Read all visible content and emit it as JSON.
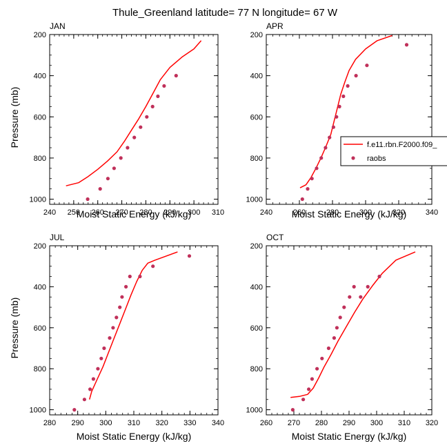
{
  "title": "Thule_Greenland  latitude= 77 N longitude= 67 W",
  "colors": {
    "model": "#ff0000",
    "obs": "#c0305a",
    "axis": "#000000"
  },
  "legend": {
    "model_label": "f.e11.rbn.F2000.f09_",
    "obs_label": "raobs",
    "placement": "inside APR panel, right side, clipped"
  },
  "chart_data": [
    {
      "type": "line",
      "panel": "JAN",
      "xlabel": "Moist Static Energy (kJ/kg)",
      "ylabel": "Pressure (mb)",
      "xlim": [
        240,
        310
      ],
      "ylim": [
        1025,
        200
      ],
      "xticks": [
        240,
        250,
        260,
        270,
        280,
        290,
        300,
        310
      ],
      "yticks": [
        200,
        400,
        600,
        800,
        1000
      ],
      "series": [
        {
          "name": "f.e11.rbn.F2000.f09_",
          "kind": "line",
          "x": [
            246.8,
            252,
            256,
            260,
            264,
            268,
            271,
            274,
            277,
            280,
            283,
            286,
            290,
            295,
            300,
            303
          ],
          "y": [
            935,
            920,
            890,
            855,
            815,
            770,
            720,
            665,
            610,
            550,
            485,
            420,
            360,
            310,
            270,
            230
          ]
        },
        {
          "name": "raobs",
          "kind": "scatter",
          "x": [
            255.8,
            261,
            264.2,
            266.8,
            269.6,
            272.4,
            275.2,
            277.8,
            280.4,
            282.8,
            285,
            287.6,
            292.6
          ],
          "y": [
            1000,
            950,
            900,
            850,
            800,
            750,
            700,
            650,
            600,
            550,
            500,
            450,
            400
          ]
        }
      ]
    },
    {
      "type": "line",
      "panel": "APR",
      "xlabel": "Moist Static Energy (kJ/kg)",
      "ylabel": "",
      "xlim": [
        240,
        340
      ],
      "ylim": [
        1025,
        200
      ],
      "xticks": [
        240,
        260,
        280,
        300,
        320,
        340
      ],
      "yticks": [
        200,
        400,
        600,
        800,
        1000
      ],
      "series": [
        {
          "name": "f.e11.rbn.F2000.f09_",
          "kind": "line",
          "x": [
            260.4,
            264,
            267,
            270,
            273,
            276,
            279,
            281,
            283,
            285,
            287.5,
            290,
            294,
            300,
            307,
            316
          ],
          "y": [
            945,
            930,
            895,
            850,
            800,
            745,
            685,
            620,
            555,
            490,
            430,
            375,
            320,
            270,
            230,
            205
          ]
        },
        {
          "name": "raobs",
          "kind": "scatter",
          "x": [
            261.8,
            265,
            267.6,
            270.4,
            273.2,
            275.8,
            278.2,
            280.6,
            282.4,
            284.2,
            286.6,
            289.2,
            294.2,
            300.8,
            324.8
          ],
          "y": [
            1000,
            950,
            900,
            850,
            800,
            750,
            700,
            650,
            600,
            550,
            500,
            450,
            400,
            350,
            250
          ]
        }
      ]
    },
    {
      "type": "line",
      "panel": "JUL",
      "xlabel": "Moist Static Energy (kJ/kg)",
      "ylabel": "Pressure (mb)",
      "xlim": [
        280,
        340
      ],
      "ylim": [
        1025,
        200
      ],
      "xticks": [
        280,
        290,
        300,
        310,
        320,
        330,
        340
      ],
      "yticks": [
        200,
        400,
        600,
        800,
        1000
      ],
      "series": [
        {
          "name": "f.e11.rbn.F2000.f09_",
          "kind": "line",
          "x": [
            294.2,
            295,
            297,
            299,
            301,
            303,
            305,
            307,
            309,
            311,
            313,
            315,
            317.6,
            325.6
          ],
          "y": [
            950,
            910,
            850,
            790,
            720,
            650,
            580,
            510,
            440,
            375,
            320,
            285,
            270,
            230
          ]
        },
        {
          "name": "raobs",
          "kind": "scatter",
          "x": [
            288.8,
            292.4,
            294.4,
            295.6,
            297.2,
            298.4,
            299.4,
            301.4,
            302.6,
            303.8,
            305,
            305.8,
            307.2,
            308.6,
            312.2,
            316.8,
            329.8
          ],
          "y": [
            1000,
            950,
            900,
            850,
            800,
            750,
            700,
            650,
            600,
            550,
            500,
            450,
            400,
            350,
            350,
            300,
            250
          ]
        }
      ]
    },
    {
      "type": "line",
      "panel": "OCT",
      "xlabel": "Moist Static Energy (kJ/kg)",
      "ylabel": "",
      "xlim": [
        260,
        320
      ],
      "ylim": [
        1025,
        200
      ],
      "xticks": [
        260,
        270,
        280,
        290,
        300,
        310,
        320
      ],
      "yticks": [
        200,
        400,
        600,
        800,
        1000
      ],
      "series": [
        {
          "name": "f.e11.rbn.F2000.f09_",
          "kind": "line",
          "x": [
            268.8,
            272,
            275,
            277,
            279,
            281,
            283.5,
            286,
            289,
            292,
            295,
            298.5,
            302,
            307,
            314
          ],
          "y": [
            940,
            935,
            925,
            895,
            845,
            790,
            730,
            665,
            595,
            525,
            460,
            395,
            335,
            270,
            230
          ]
        },
        {
          "name": "raobs",
          "kind": "scatter",
          "x": [
            269.6,
            273.4,
            275.4,
            276.6,
            278.4,
            280.2,
            282.6,
            284.6,
            285.6,
            286.8,
            288.2,
            290.2,
            291.8,
            294.2,
            296.8,
            301
          ],
          "y": [
            1000,
            950,
            900,
            850,
            800,
            750,
            700,
            650,
            600,
            550,
            500,
            450,
            400,
            450,
            400,
            350
          ]
        }
      ]
    }
  ]
}
